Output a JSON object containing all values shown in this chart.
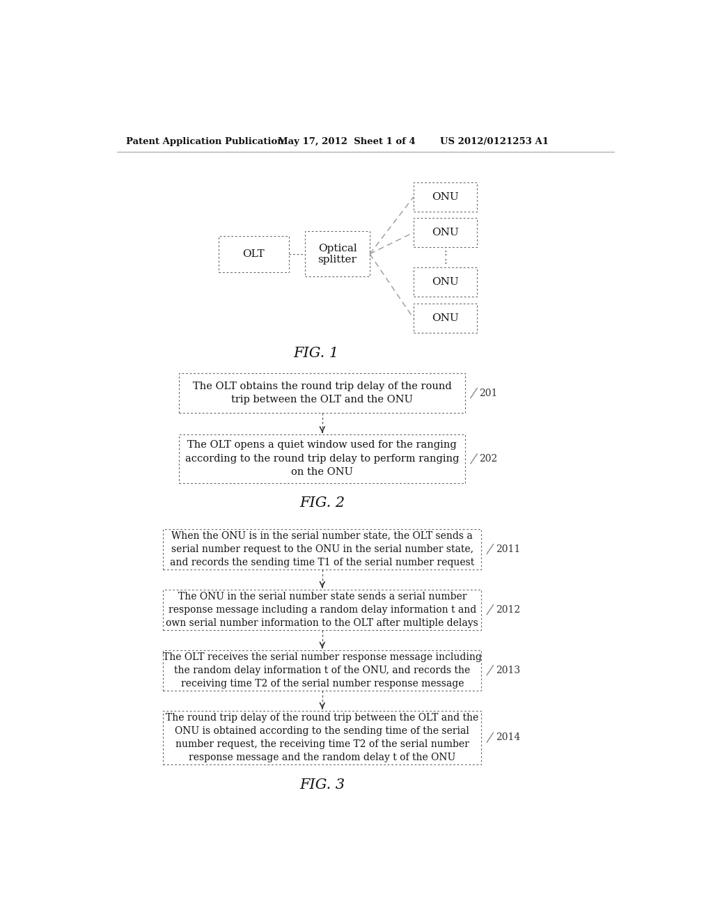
{
  "bg_color": "#ffffff",
  "header_left": "Patent Application Publication",
  "header_mid": "May 17, 2012  Sheet 1 of 4",
  "header_right": "US 2012/0121253 A1",
  "fig1": {
    "olt_label": "OLT",
    "splitter_label": "Optical\nsplitter",
    "onu_labels": [
      "ONU",
      "ONU",
      "ONU",
      "ONU"
    ],
    "fig_caption": "FIG. 1"
  },
  "fig2": {
    "boxes": [
      {
        "text": "The OLT obtains the round trip delay of the round\ntrip between the OLT and the ONU",
        "ref": "201"
      },
      {
        "text": "The OLT opens a quiet window used for the ranging\naccording to the round trip delay to perform ranging\non the ONU",
        "ref": "202"
      }
    ],
    "fig_caption": "FIG. 2"
  },
  "fig3": {
    "boxes": [
      {
        "text": "When the ONU is in the serial number state, the OLT sends a\nserial number request to the ONU in the serial number state,\nand records the sending time T1 of the serial number request",
        "ref": "2011"
      },
      {
        "text": "The ONU in the serial number state sends a serial number\nresponse message including a random delay information t and\nown serial number information to the OLT after multiple delays",
        "ref": "2012"
      },
      {
        "text": "The OLT receives the serial number response message including\nthe random delay information t of the ONU, and records the\nreceiving time T2 of the serial number response message",
        "ref": "2013"
      },
      {
        "text": "The round trip delay of the round trip between the OLT and the\nONU is obtained according to the sending time of the serial\nnumber request, the receiving time T2 of the serial number\nresponse message and the random delay t of the ONU",
        "ref": "2014"
      }
    ],
    "fig_caption": "FIG. 3"
  }
}
